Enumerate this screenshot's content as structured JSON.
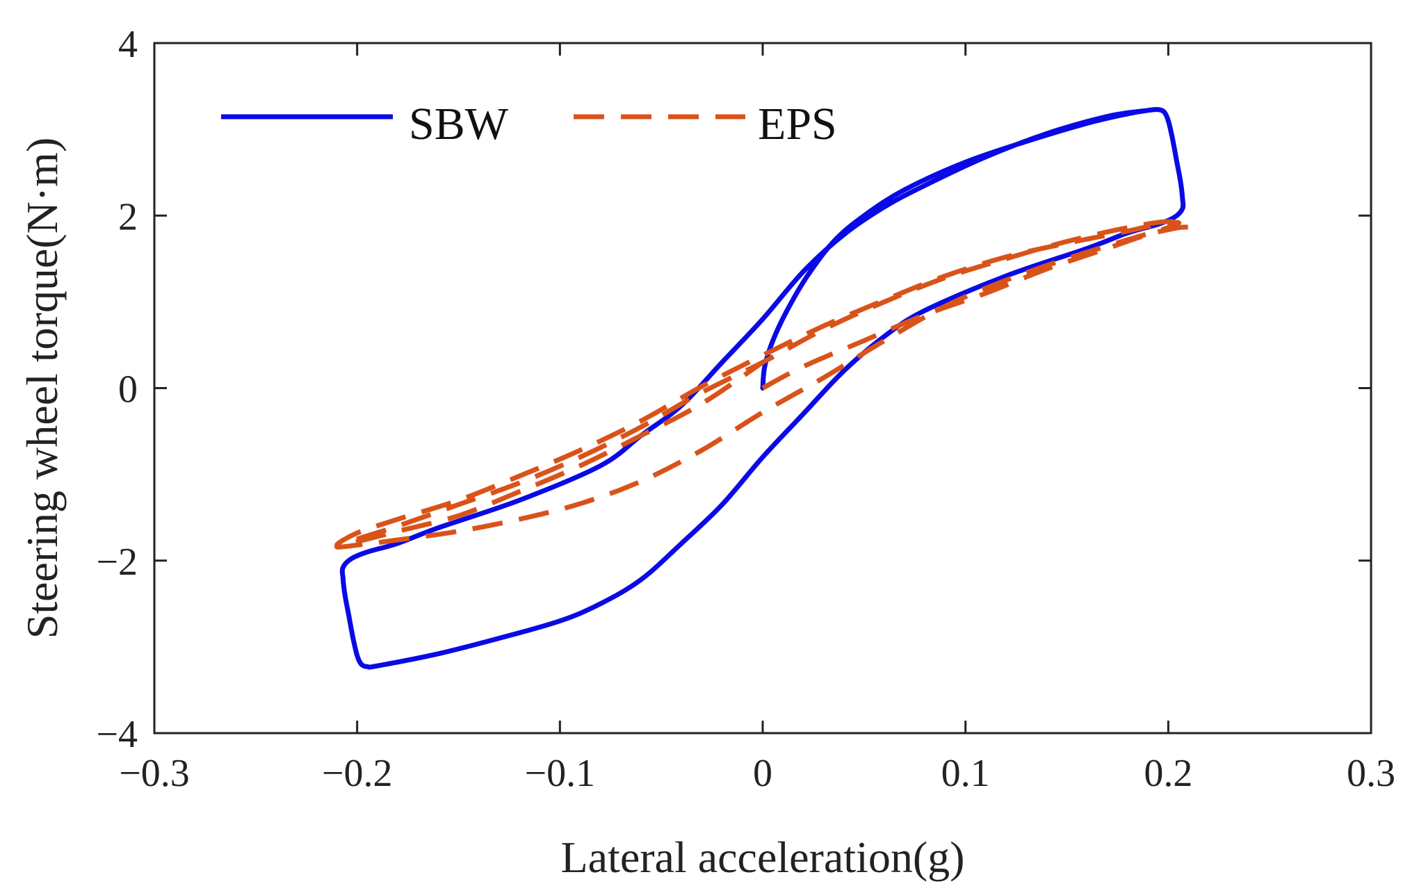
{
  "chart_data": {
    "type": "line",
    "title": "",
    "xlabel": "Lateral acceleration(g)",
    "ylabel": "Steering wheel torque(N·m)",
    "xlim": [
      -0.3,
      0.3
    ],
    "ylim": [
      -4,
      4
    ],
    "xticks": [
      -0.3,
      -0.2,
      -0.1,
      0,
      0.1,
      0.2,
      0.3
    ],
    "xtick_labels": [
      "−0.3",
      "−0.2",
      "−0.1",
      "0",
      "0.1",
      "0.2",
      "0.3"
    ],
    "yticks": [
      -4,
      -2,
      0,
      2,
      4
    ],
    "ytick_labels": [
      "−4",
      "−2",
      "0",
      "2",
      "4"
    ],
    "grid": false,
    "legend_position": "top-left",
    "series": [
      {
        "name": "SBW",
        "color": "#0a0ae6",
        "style": "solid",
        "x": [
          0.0,
          0.001,
          0.005,
          0.012,
          0.022,
          0.035,
          0.05,
          0.07,
          0.1,
          0.13,
          0.16,
          0.18,
          0.19,
          0.195,
          0.198,
          0.2,
          0.202,
          0.204,
          0.206,
          0.207,
          0.207,
          0.203,
          0.195,
          0.18,
          0.16,
          0.12,
          0.08,
          0.06,
          0.04,
          0.02,
          0.0,
          -0.02,
          -0.04,
          -0.06,
          -0.08,
          -0.1,
          -0.13,
          -0.16,
          -0.19,
          -0.195,
          -0.198,
          -0.2,
          -0.202,
          -0.204,
          -0.206,
          -0.207,
          -0.207,
          -0.203,
          -0.195,
          -0.18,
          -0.16,
          -0.12,
          -0.08,
          -0.06,
          -0.04,
          -0.02,
          0.0,
          0.02,
          0.04,
          0.06,
          0.08,
          0.11,
          0.14,
          0.17,
          0.19,
          0.195
        ],
        "y": [
          0.0,
          0.25,
          0.55,
          0.9,
          1.3,
          1.7,
          2.0,
          2.3,
          2.62,
          2.86,
          3.07,
          3.18,
          3.22,
          3.23,
          3.2,
          3.1,
          2.9,
          2.65,
          2.4,
          2.2,
          2.08,
          1.98,
          1.9,
          1.8,
          1.62,
          1.3,
          0.9,
          0.6,
          0.2,
          -0.3,
          -0.8,
          -1.35,
          -1.8,
          -2.22,
          -2.5,
          -2.7,
          -2.9,
          -3.08,
          -3.22,
          -3.23,
          -3.2,
          -3.1,
          -2.9,
          -2.65,
          -2.4,
          -2.2,
          -2.08,
          -1.98,
          -1.9,
          -1.8,
          -1.62,
          -1.3,
          -0.9,
          -0.55,
          -0.2,
          0.3,
          0.8,
          1.35,
          1.78,
          2.1,
          2.35,
          2.68,
          2.95,
          3.15,
          3.22,
          3.23
        ]
      },
      {
        "name": "EPS",
        "color": "#d95319",
        "style": "dashed",
        "x": [
          0.0,
          0.02,
          0.05,
          0.08,
          0.11,
          0.14,
          0.17,
          0.19,
          0.205,
          0.21,
          0.2,
          0.18,
          0.15,
          0.12,
          0.09,
          0.06,
          0.03,
          0.0,
          -0.03,
          -0.06,
          -0.09,
          -0.12,
          -0.15,
          -0.18,
          -0.2,
          -0.21,
          -0.2,
          -0.18,
          -0.15,
          -0.12,
          -0.09,
          -0.06,
          -0.03,
          0.0,
          0.03,
          0.06,
          0.09,
          0.12,
          0.15,
          0.18,
          0.2,
          0.205,
          0.195,
          0.18,
          0.15,
          0.12,
          0.09,
          0.06,
          0.03,
          0.0,
          -0.03,
          -0.06,
          -0.09,
          -0.12,
          -0.15,
          -0.18,
          -0.2,
          -0.21,
          -0.2,
          -0.18,
          -0.15,
          -0.12,
          -0.09,
          -0.06,
          -0.03,
          0.0
        ],
        "y": [
          0.0,
          0.25,
          0.55,
          0.85,
          1.1,
          1.38,
          1.62,
          1.78,
          1.86,
          1.87,
          1.93,
          1.86,
          1.7,
          1.5,
          1.28,
          1.0,
          0.68,
          0.3,
          -0.05,
          -0.45,
          -0.8,
          -1.1,
          -1.35,
          -1.6,
          -1.75,
          -1.84,
          -1.82,
          -1.76,
          -1.66,
          -1.52,
          -1.34,
          -1.08,
          -0.72,
          -0.28,
          0.12,
          0.55,
          0.95,
          1.25,
          1.5,
          1.72,
          1.86,
          1.92,
          1.9,
          1.82,
          1.68,
          1.52,
          1.3,
          1.02,
          0.72,
          0.38,
          0.02,
          -0.38,
          -0.72,
          -1.02,
          -1.3,
          -1.52,
          -1.68,
          -1.82,
          -1.78,
          -1.66,
          -1.48,
          -1.2,
          -0.9,
          -0.55,
          -0.18,
          0.3
        ]
      }
    ]
  }
}
